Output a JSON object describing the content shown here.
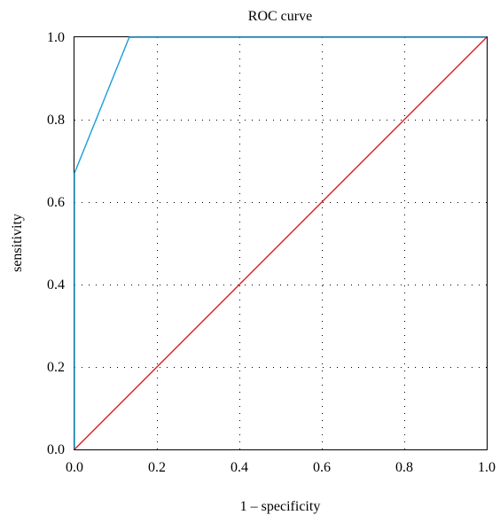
{
  "chart_data": {
    "type": "line",
    "title": "ROC curve",
    "xlabel": "1 – specificity",
    "ylabel": "sensitivity",
    "xlim": [
      0,
      1
    ],
    "ylim": [
      0,
      1
    ],
    "x_ticks": [
      {
        "value": 0.0,
        "label": "0.0"
      },
      {
        "value": 0.2,
        "label": "0.2"
      },
      {
        "value": 0.4,
        "label": "0.4"
      },
      {
        "value": 0.6,
        "label": "0.6"
      },
      {
        "value": 0.8,
        "label": "0.8"
      },
      {
        "value": 1.0,
        "label": "1.0"
      }
    ],
    "y_ticks": [
      {
        "value": 0.0,
        "label": "0.0"
      },
      {
        "value": 0.2,
        "label": "0.2"
      },
      {
        "value": 0.4,
        "label": "0.4"
      },
      {
        "value": 0.6,
        "label": "0.6"
      },
      {
        "value": 0.8,
        "label": "0.8"
      },
      {
        "value": 1.0,
        "label": "1.0"
      }
    ],
    "grid": "dotted",
    "legend": "none",
    "series": [
      {
        "color": "#1a9ed6",
        "points": [
          {
            "x": 0.0,
            "y": 0.0
          },
          {
            "x": 0.0,
            "y": 0.67
          },
          {
            "x": 0.133,
            "y": 1.0
          },
          {
            "x": 1.0,
            "y": 1.0
          }
        ]
      },
      {
        "color": "#e31a1c",
        "points": [
          {
            "x": 0.0,
            "y": 0.0
          },
          {
            "x": 1.0,
            "y": 1.0
          }
        ]
      }
    ]
  }
}
